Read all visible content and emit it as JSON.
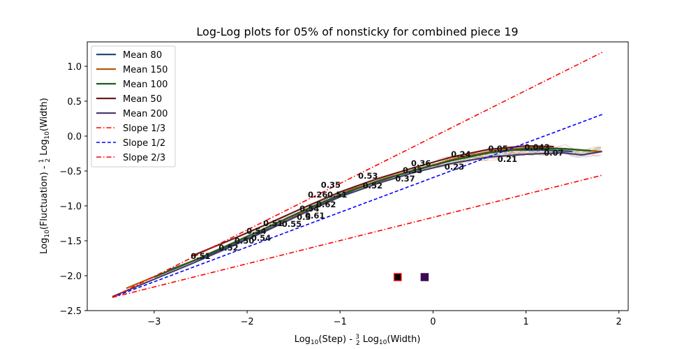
{
  "chart_data": {
    "type": "line",
    "title": "Log-Log plots for 05% of nonsticky for combined piece 19",
    "xlabel_parts": {
      "a": "Log",
      "b": "10",
      "c": "(Step) - ",
      "d": "3",
      "e": "2",
      "f": " Log",
      "g": "10",
      "h": "(Width)"
    },
    "ylabel_parts": {
      "a": "Log",
      "b": "10",
      "c": "(Fluctuation) - ",
      "d": "1",
      "e": "2",
      "f": " Log",
      "g": "10",
      "h": "(Width)"
    },
    "xlim": [
      -3.72,
      2.1
    ],
    "ylim": [
      -2.5,
      1.35
    ],
    "xticks": [
      {
        "value": -3,
        "label": "−3"
      },
      {
        "value": -2,
        "label": "−2"
      },
      {
        "value": -1,
        "label": "−1"
      },
      {
        "value": 0,
        "label": "0"
      },
      {
        "value": 1,
        "label": "1"
      },
      {
        "value": 2,
        "label": "2"
      }
    ],
    "yticks": [
      {
        "value": -2.5,
        "label": "−2.5"
      },
      {
        "value": -2.0,
        "label": "−2.0"
      },
      {
        "value": -1.5,
        "label": "−1.5"
      },
      {
        "value": -1.0,
        "label": "−1.0"
      },
      {
        "value": -0.5,
        "label": "−0.5"
      },
      {
        "value": 0.0,
        "label": "0.0"
      },
      {
        "value": 0.5,
        "label": "0.5"
      },
      {
        "value": 1.0,
        "label": "1.0"
      }
    ],
    "legend_position": "upper-left",
    "series": [
      {
        "name": "Mean 80",
        "color": "#1f4e79",
        "points": [
          [
            -2.85,
            -1.92
          ],
          [
            -2.4,
            -1.7
          ],
          [
            -2.0,
            -1.47
          ],
          [
            -1.6,
            -1.23
          ],
          [
            -1.2,
            -0.98
          ],
          [
            -0.8,
            -0.74
          ],
          [
            -0.4,
            -0.57
          ],
          [
            0.0,
            -0.42
          ],
          [
            0.4,
            -0.28
          ],
          [
            0.8,
            -0.2
          ],
          [
            1.2,
            -0.2
          ],
          [
            1.5,
            -0.22
          ]
        ]
      },
      {
        "name": "Mean 150",
        "color": "#b35900",
        "points": [
          [
            -3.3,
            -2.18
          ],
          [
            -2.9,
            -1.96
          ],
          [
            -2.5,
            -1.74
          ],
          [
            -2.1,
            -1.5
          ],
          [
            -1.7,
            -1.26
          ],
          [
            -1.3,
            -1.02
          ],
          [
            -0.9,
            -0.78
          ],
          [
            -0.5,
            -0.6
          ],
          [
            -0.1,
            -0.45
          ],
          [
            0.3,
            -0.3
          ],
          [
            0.7,
            -0.2
          ],
          [
            1.1,
            -0.16
          ],
          [
            1.5,
            -0.19
          ],
          [
            1.8,
            -0.22
          ]
        ]
      },
      {
        "name": "Mean 100",
        "color": "#1e5a1e",
        "points": [
          [
            -3.0,
            -2.02
          ],
          [
            -2.6,
            -1.8
          ],
          [
            -2.2,
            -1.56
          ],
          [
            -1.8,
            -1.32
          ],
          [
            -1.4,
            -1.07
          ],
          [
            -1.0,
            -0.84
          ],
          [
            -0.6,
            -0.65
          ],
          [
            -0.2,
            -0.49
          ],
          [
            0.2,
            -0.35
          ],
          [
            0.6,
            -0.24
          ],
          [
            1.0,
            -0.18
          ],
          [
            1.4,
            -0.18
          ],
          [
            1.7,
            -0.21
          ]
        ]
      },
      {
        "name": "Mean 50",
        "color": "#6b1a1a",
        "points": [
          [
            -2.6,
            -1.72
          ],
          [
            -2.2,
            -1.5
          ],
          [
            -1.8,
            -1.27
          ],
          [
            -1.4,
            -1.03
          ],
          [
            -1.0,
            -0.8
          ],
          [
            -0.6,
            -0.61
          ],
          [
            -0.2,
            -0.45
          ],
          [
            0.2,
            -0.3
          ],
          [
            0.6,
            -0.19
          ],
          [
            1.0,
            -0.14
          ],
          [
            1.3,
            -0.15
          ]
        ]
      },
      {
        "name": "Mean 200",
        "color": "#4a3a6b",
        "points": [
          [
            -3.45,
            -2.3
          ],
          [
            -3.0,
            -2.05
          ],
          [
            -2.6,
            -1.83
          ],
          [
            -2.2,
            -1.6
          ],
          [
            -1.8,
            -1.36
          ],
          [
            -1.4,
            -1.11
          ],
          [
            -1.0,
            -0.87
          ],
          [
            -0.6,
            -0.68
          ],
          [
            -0.2,
            -0.52
          ],
          [
            0.2,
            -0.39
          ],
          [
            0.6,
            -0.3
          ],
          [
            1.0,
            -0.26
          ],
          [
            1.4,
            -0.24
          ],
          [
            1.6,
            -0.27
          ],
          [
            1.82,
            -0.22
          ]
        ]
      },
      {
        "name": "Slope 1/3",
        "color": "#ff0000",
        "dash": "7,3,1.5,3",
        "points": [
          [
            -3.45,
            -2.31
          ],
          [
            1.82,
            -0.56
          ]
        ]
      },
      {
        "name": "Slope 1/2",
        "color": "#0000ff",
        "dash": "5,3",
        "points": [
          [
            -3.45,
            -2.31
          ],
          [
            1.82,
            0.31
          ]
        ]
      },
      {
        "name": "Slope 2/3",
        "color": "#ff0000",
        "dash": "7,3,1.5,3",
        "points": [
          [
            -3.45,
            -2.31
          ],
          [
            1.82,
            1.2
          ]
        ]
      }
    ],
    "slope_annotations": [
      {
        "x": -2.5,
        "y": -1.72,
        "text": "0.51"
      },
      {
        "x": -2.2,
        "y": -1.6,
        "text": "0.52"
      },
      {
        "x": -2.03,
        "y": -1.5,
        "text": "0.50"
      },
      {
        "x": -1.85,
        "y": -1.46,
        "text": "0.54"
      },
      {
        "x": -1.9,
        "y": -1.36,
        "text": "0.54"
      },
      {
        "x": -1.72,
        "y": -1.25,
        "text": "0.51"
      },
      {
        "x": -1.52,
        "y": -1.26,
        "text": "0.55"
      },
      {
        "x": -1.39,
        "y": -1.16,
        "text": "0.5"
      },
      {
        "x": -1.27,
        "y": -1.14,
        "text": "0.61"
      },
      {
        "x": -1.33,
        "y": -1.04,
        "text": "0.54"
      },
      {
        "x": -1.15,
        "y": -0.98,
        "text": "0.62"
      },
      {
        "x": -1.24,
        "y": -0.84,
        "text": "0.26"
      },
      {
        "x": -1.03,
        "y": -0.84,
        "text": "0.51"
      },
      {
        "x": -1.1,
        "y": -0.7,
        "text": "0.35"
      },
      {
        "x": -0.65,
        "y": -0.71,
        "text": "0.52"
      },
      {
        "x": -0.7,
        "y": -0.57,
        "text": "0.53"
      },
      {
        "x": -0.3,
        "y": -0.61,
        "text": "0.37"
      },
      {
        "x": -0.22,
        "y": -0.49,
        "text": "0.33"
      },
      {
        "x": -0.13,
        "y": -0.39,
        "text": "0.36"
      },
      {
        "x": 0.23,
        "y": -0.44,
        "text": "0.23"
      },
      {
        "x": 0.3,
        "y": -0.26,
        "text": "0.24"
      },
      {
        "x": 0.8,
        "y": -0.33,
        "text": "0.21"
      },
      {
        "x": 0.7,
        "y": -0.18,
        "text": "0.05"
      },
      {
        "x": 1.12,
        "y": -0.16,
        "text": "0.043"
      },
      {
        "x": 1.3,
        "y": -0.24,
        "text": "0.07"
      }
    ],
    "markers": [
      {
        "x": -0.38,
        "y": -2.02,
        "fill": "#000000",
        "stroke": "#ff0000"
      },
      {
        "x": -0.09,
        "y": -2.02,
        "fill": "#3d0a55",
        "stroke": "#3d0a55"
      }
    ]
  }
}
